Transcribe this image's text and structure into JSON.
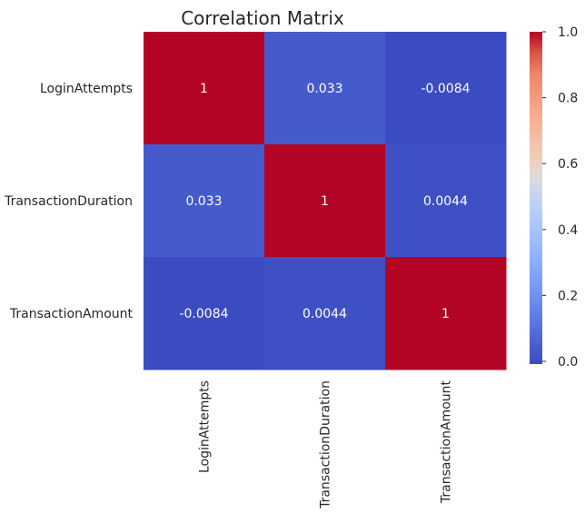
{
  "chart_data": {
    "type": "heatmap",
    "title": "Correlation Matrix",
    "row_labels": [
      "LoginAttempts",
      "TransactionDuration",
      "TransactionAmount"
    ],
    "col_labels": [
      "LoginAttempts",
      "TransactionDuration",
      "TransactionAmount"
    ],
    "values": [
      [
        1,
        0.033,
        -0.0084
      ],
      [
        0.033,
        1,
        0.0044
      ],
      [
        -0.0084,
        0.0044,
        1
      ]
    ],
    "annotations": [
      [
        "1",
        "0.033",
        "-0.0084"
      ],
      [
        "0.033",
        "1",
        "0.0044"
      ],
      [
        "-0.0084",
        "0.0044",
        "1"
      ]
    ],
    "colormap": "coolwarm",
    "colorbar": {
      "range": [
        -0.0084,
        1
      ],
      "ticks": [
        0.0,
        0.2,
        0.4,
        0.6,
        0.8,
        1.0
      ],
      "tick_labels": [
        "0.0",
        "0.2",
        "0.4",
        "0.6",
        "0.8",
        "1.0"
      ]
    },
    "grid": false
  }
}
